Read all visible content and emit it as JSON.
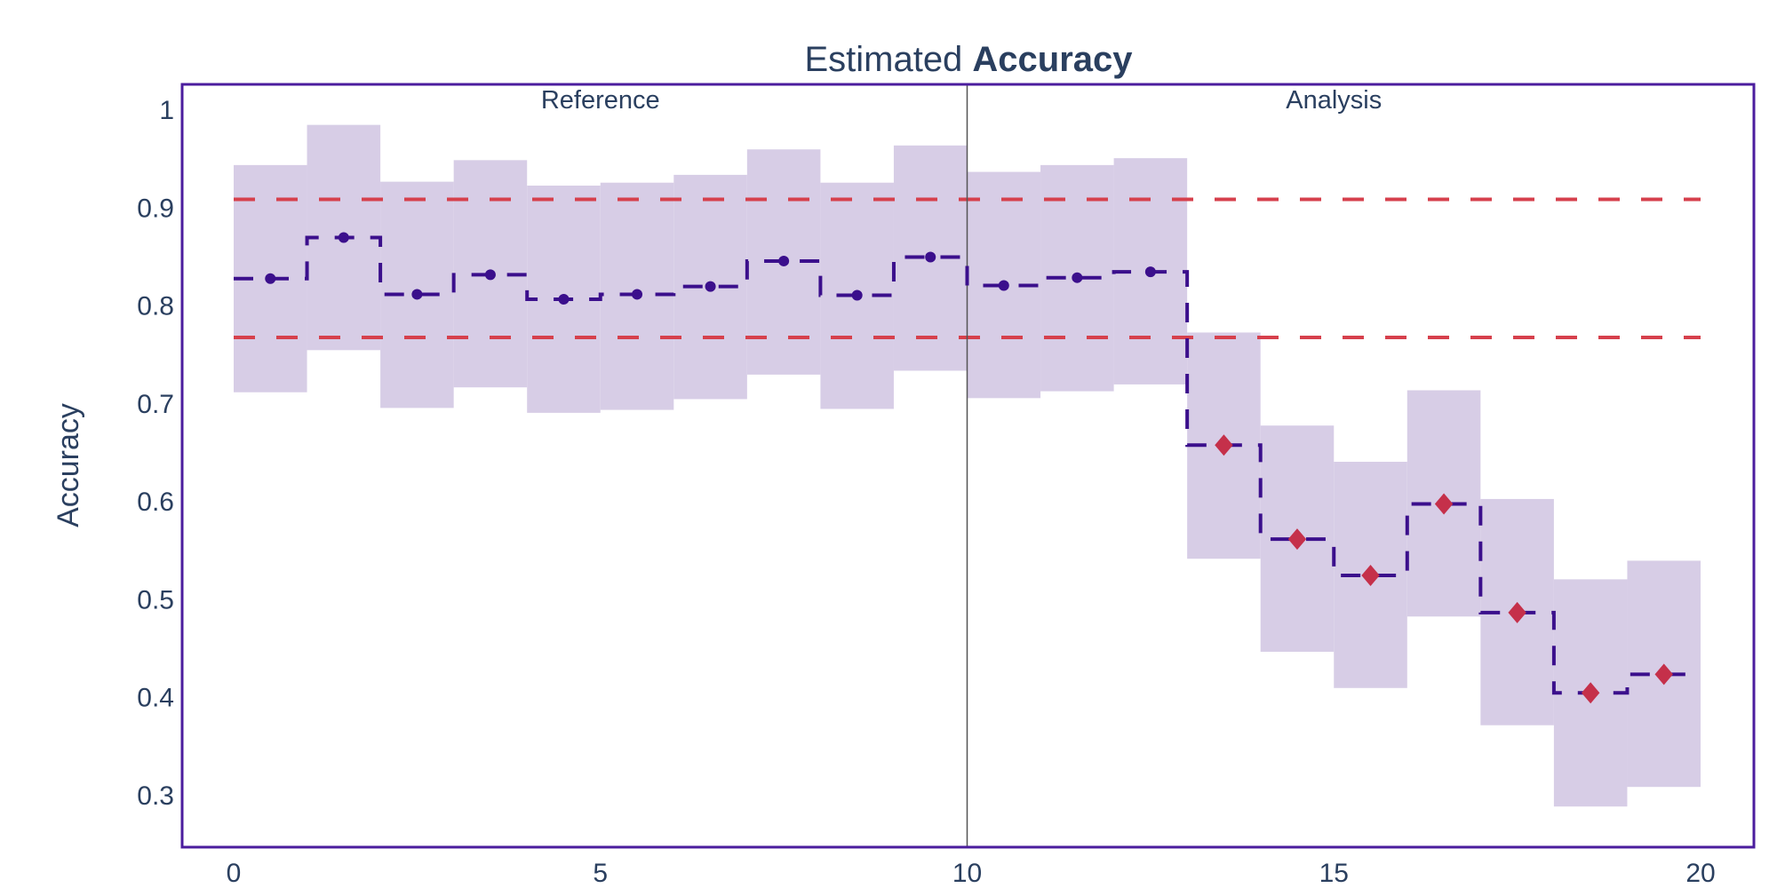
{
  "chart_data": {
    "type": "line",
    "title_prefix": "Estimated ",
    "title_bold": "Accuracy",
    "xlabel": "",
    "ylabel": "Accuracy",
    "xlim": [
      0,
      20
    ],
    "ylim": [
      0.25,
      1.02
    ],
    "xticks": [
      0,
      5,
      10,
      15,
      20
    ],
    "yticks": [
      0.3,
      0.4,
      0.5,
      0.6,
      0.7,
      0.8,
      0.9,
      1
    ],
    "ytick_labels": [
      "0.3",
      "0.4",
      "0.5",
      "0.6",
      "0.7",
      "0.8",
      "0.9",
      "1"
    ],
    "grid": false,
    "period_divider_x": 10,
    "periods": [
      {
        "label": "Reference",
        "x_center": 5
      },
      {
        "label": "Analysis",
        "x_center": 15
      }
    ],
    "thresholds": {
      "upper": 0.908,
      "lower": 0.767
    },
    "chunks": [
      {
        "start": 0,
        "end": 1,
        "value": 0.827,
        "upper": 0.943,
        "lower": 0.711,
        "period": "reference",
        "alert": false
      },
      {
        "start": 1,
        "end": 2,
        "value": 0.869,
        "upper": 0.984,
        "lower": 0.754,
        "period": "reference",
        "alert": false
      },
      {
        "start": 2,
        "end": 3,
        "value": 0.811,
        "upper": 0.926,
        "lower": 0.695,
        "period": "reference",
        "alert": false
      },
      {
        "start": 3,
        "end": 4,
        "value": 0.831,
        "upper": 0.948,
        "lower": 0.716,
        "period": "reference",
        "alert": false
      },
      {
        "start": 4,
        "end": 5,
        "value": 0.806,
        "upper": 0.922,
        "lower": 0.69,
        "period": "reference",
        "alert": false
      },
      {
        "start": 5,
        "end": 6,
        "value": 0.811,
        "upper": 0.925,
        "lower": 0.693,
        "period": "reference",
        "alert": false
      },
      {
        "start": 6,
        "end": 7,
        "value": 0.819,
        "upper": 0.933,
        "lower": 0.704,
        "period": "reference",
        "alert": false
      },
      {
        "start": 7,
        "end": 8,
        "value": 0.845,
        "upper": 0.959,
        "lower": 0.729,
        "period": "reference",
        "alert": false
      },
      {
        "start": 8,
        "end": 9,
        "value": 0.81,
        "upper": 0.925,
        "lower": 0.694,
        "period": "reference",
        "alert": false
      },
      {
        "start": 9,
        "end": 10,
        "value": 0.849,
        "upper": 0.963,
        "lower": 0.733,
        "period": "reference",
        "alert": false
      },
      {
        "start": 10,
        "end": 11,
        "value": 0.82,
        "upper": 0.936,
        "lower": 0.705,
        "period": "analysis",
        "alert": false
      },
      {
        "start": 11,
        "end": 12,
        "value": 0.828,
        "upper": 0.943,
        "lower": 0.712,
        "period": "analysis",
        "alert": false
      },
      {
        "start": 12,
        "end": 13,
        "value": 0.834,
        "upper": 0.95,
        "lower": 0.719,
        "period": "analysis",
        "alert": false
      },
      {
        "start": 13,
        "end": 14,
        "value": 0.657,
        "upper": 0.772,
        "lower": 0.541,
        "period": "analysis",
        "alert": true
      },
      {
        "start": 14,
        "end": 15,
        "value": 0.561,
        "upper": 0.677,
        "lower": 0.446,
        "period": "analysis",
        "alert": true
      },
      {
        "start": 15,
        "end": 16,
        "value": 0.524,
        "upper": 0.64,
        "lower": 0.409,
        "period": "analysis",
        "alert": true
      },
      {
        "start": 16,
        "end": 17,
        "value": 0.597,
        "upper": 0.713,
        "lower": 0.482,
        "period": "analysis",
        "alert": true
      },
      {
        "start": 17,
        "end": 18,
        "value": 0.486,
        "upper": 0.602,
        "lower": 0.371,
        "period": "analysis",
        "alert": true
      },
      {
        "start": 18,
        "end": 19,
        "value": 0.404,
        "upper": 0.52,
        "lower": 0.288,
        "period": "analysis",
        "alert": true
      },
      {
        "start": 19,
        "end": 20,
        "value": 0.423,
        "upper": 0.539,
        "lower": 0.308,
        "period": "analysis",
        "alert": true
      }
    ],
    "colors": {
      "line": "#3b0f8c",
      "band": "#d7cde6",
      "threshold": "#d6404c",
      "alert_marker": "#c5304a",
      "frame": "#4b1d9e",
      "divider": "#555555",
      "text": "#2a3f5f"
    },
    "markers": {
      "normal": "circle",
      "alert": "diamond"
    }
  }
}
